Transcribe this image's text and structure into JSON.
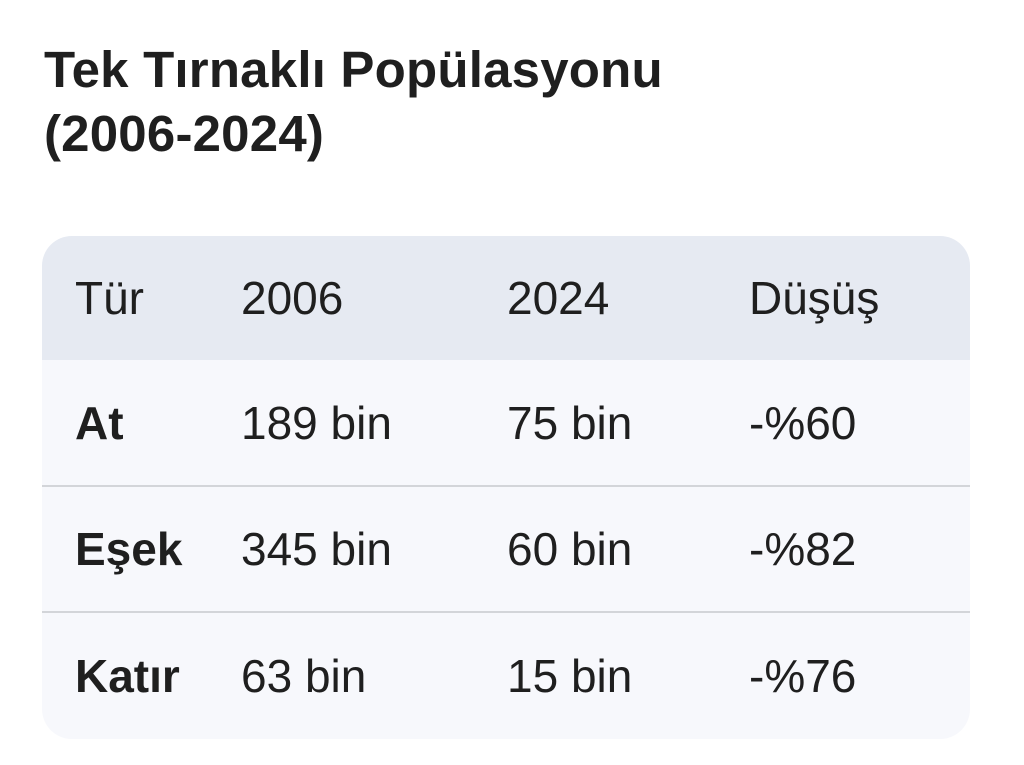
{
  "title": {
    "line1": "Tek Tırnaklı Popülasyonu",
    "line2": "(2006-2024)"
  },
  "table": {
    "headers": [
      "Tür",
      "2006",
      "2024",
      "Düşüş"
    ],
    "rows": [
      [
        "At",
        "189 bin",
        "75 bin",
        "-%60"
      ],
      [
        "Eşek",
        "345 bin",
        "60 bin",
        "-%82"
      ],
      [
        "Katır",
        "63 bin",
        "15 bin",
        "-%76"
      ]
    ]
  },
  "colors": {
    "header_bg": "#e6eaf2",
    "body_bg": "#f7f8fc",
    "divider": "#d3d5d9",
    "text": "#1f1f1f"
  }
}
